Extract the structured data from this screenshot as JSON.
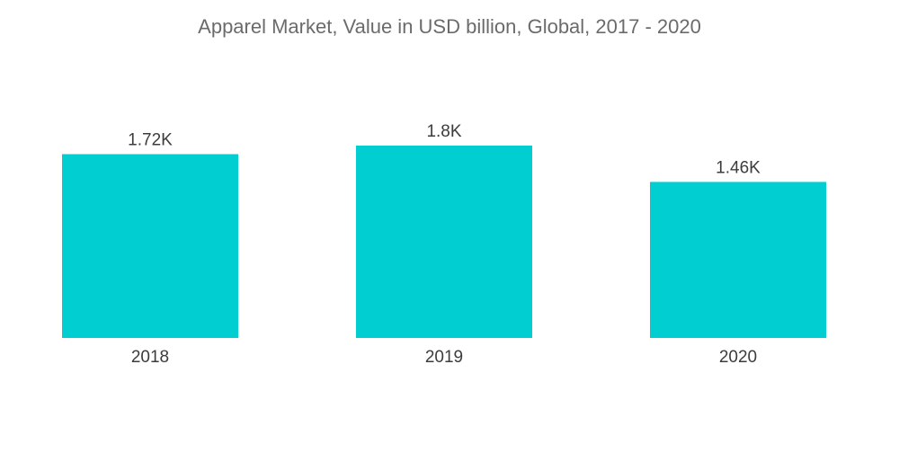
{
  "chart_data": {
    "type": "bar",
    "title": "Apparel Market, Value in USD billion, Global, 2017 - 2020",
    "xlabel": "",
    "ylabel": "",
    "categories": [
      "2018",
      "2019",
      "2020"
    ],
    "values": [
      1720,
      1800,
      1460
    ],
    "value_labels": [
      "1.72K",
      "1.8K",
      "1.46K"
    ],
    "ylim": [
      0,
      1800
    ],
    "grid": false,
    "legend": "none",
    "bar_color": "#00ced1"
  }
}
